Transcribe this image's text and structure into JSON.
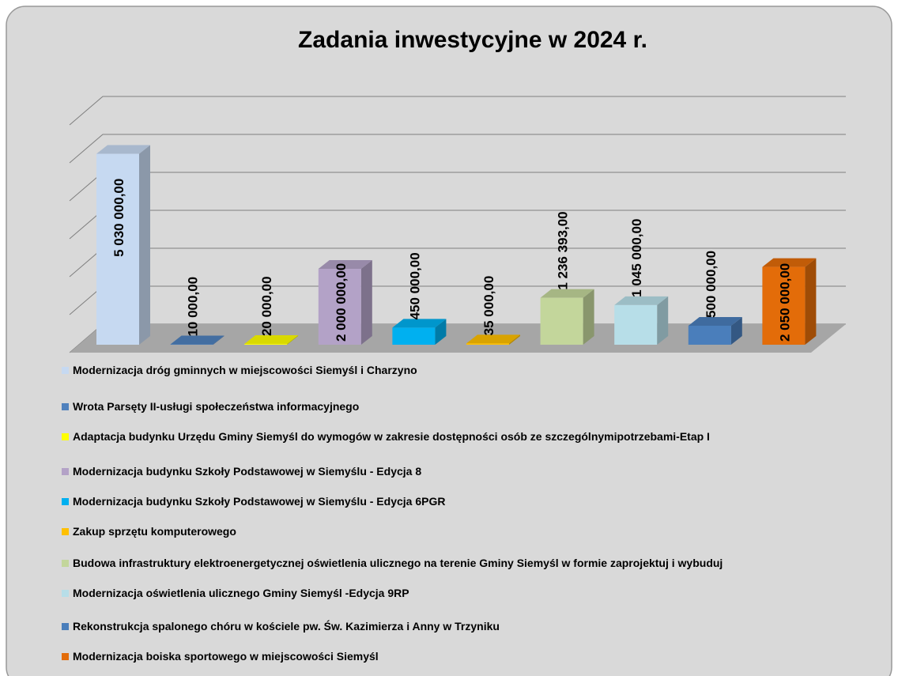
{
  "chart_data": {
    "type": "bar3d",
    "title": "Zadania inwestycyjne w 2024 r.",
    "categories": [
      "Modernizacja dróg gminnych w miejscowości Siemyśl i Charzyno",
      "Wrota Parsęty II-usługi społeczeństwa informacyjnego",
      "Adaptacja budynku Urzędu Gminy Siemyśl do wymogów w zakresie dostępności osób ze szczególnymipotrzebami-Etap I",
      "Modernizacja budynku Szkoły Podstawowej w Siemyślu - Edycja 8",
      "Modernizacja budynku Szkoły Podstawowej w Siemyślu - Edycja 6PGR",
      "Zakup sprzętu komputerowego",
      "Budowa infrastruktury elektroenergetycznej oświetlenia ulicznego na terenie Gminy Siemyśl w formie zaprojektuj i wybuduj",
      "Modernizacja oświetlenia ulicznego Gminy Siemyśl -Edycja 9RP",
      "Rekonstrukcja spalonego chóru w kościele pw. Św. Kazimierza i Anny w Trzyniku",
      "Modernizacja boiska sportowego w miejscowości Siemyśl"
    ],
    "values": [
      5030000,
      10000,
      20000,
      2000000,
      450000,
      35000,
      1236393,
      1045000,
      500000,
      2050000
    ],
    "value_labels": [
      "5 030 000,00",
      "10 000,00",
      "20 000,00",
      "2 000 000,00",
      "450 000,00",
      "35 000,00",
      "1 236 393,00",
      "1 045 000,00",
      "500 000,00",
      "2 050 000,00"
    ],
    "colors": [
      "#c6d9f1",
      "#4f81bd",
      "#ffff00",
      "#b3a2c7",
      "#00b0f0",
      "#ffc000",
      "#c3d69b",
      "#b7dee8",
      "#4a7ebb",
      "#e36c09"
    ],
    "ylim": [
      0,
      6000000
    ],
    "yticks": [
      0,
      1000000,
      2000000,
      3000000,
      4000000,
      5000000,
      6000000
    ],
    "grid": true
  }
}
